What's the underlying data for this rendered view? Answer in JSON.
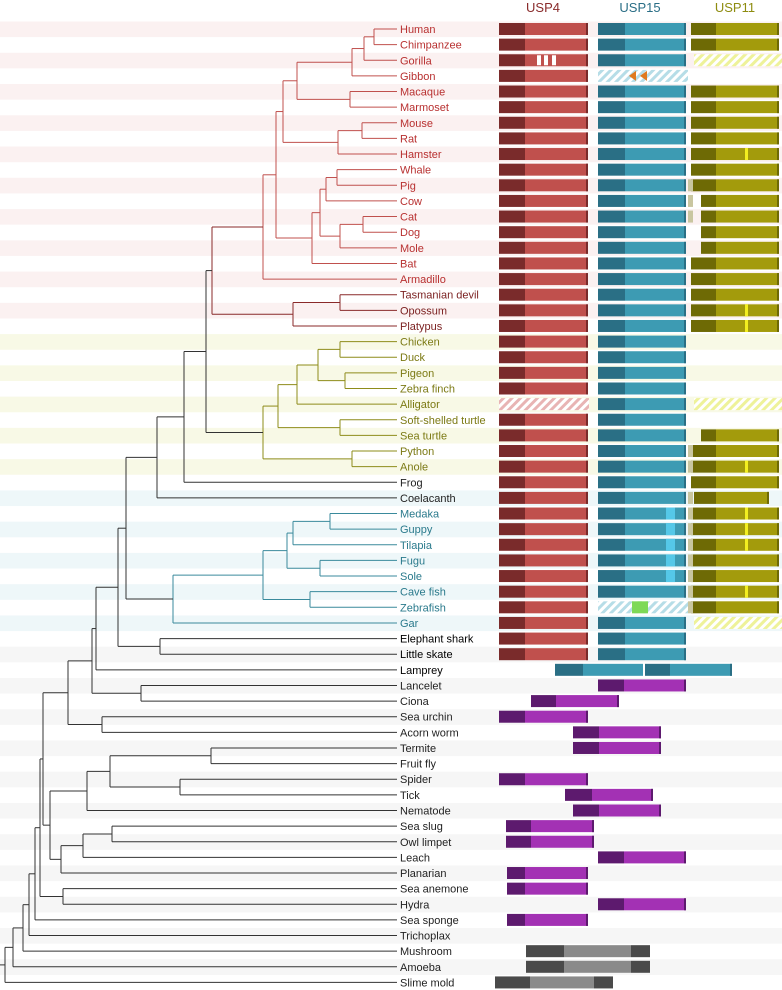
{
  "headers": [
    {
      "label": "USP4",
      "color": "#8a2c2c"
    },
    {
      "label": "USP15",
      "color": "#2a6e86"
    },
    {
      "label": "USP11",
      "color": "#8e8c10"
    }
  ],
  "clade_colors": {
    "mammal": "#b83030",
    "basal_mammal": "#7a1f1f",
    "sauropsid": "#7c7a14",
    "fish": "#2a7a8c",
    "other": "#222222"
  },
  "domain_colors": {
    "usp4": [
      "#7a2b2b",
      "#c0504d"
    ],
    "usp15": [
      "#2a6f85",
      "#3d9bb3"
    ],
    "usp11": [
      "#6e6a05",
      "#a39b0c"
    ],
    "purple": [
      "#5d1a6e",
      "#a331b4"
    ],
    "gray": [
      "#4a4a4a",
      "#8a8a8a"
    ]
  },
  "species": [
    {
      "name": "Human",
      "clade": "mammal"
    },
    {
      "name": "Chimpanzee",
      "clade": "mammal"
    },
    {
      "name": "Gorilla",
      "clade": "mammal"
    },
    {
      "name": "Gibbon",
      "clade": "mammal"
    },
    {
      "name": "Macaque",
      "clade": "mammal"
    },
    {
      "name": "Marmoset",
      "clade": "mammal"
    },
    {
      "name": "Mouse",
      "clade": "mammal"
    },
    {
      "name": "Rat",
      "clade": "mammal"
    },
    {
      "name": "Hamster",
      "clade": "mammal"
    },
    {
      "name": "Whale",
      "clade": "mammal"
    },
    {
      "name": "Pig",
      "clade": "mammal"
    },
    {
      "name": "Cow",
      "clade": "mammal"
    },
    {
      "name": "Cat",
      "clade": "mammal"
    },
    {
      "name": "Dog",
      "clade": "mammal"
    },
    {
      "name": "Mole",
      "clade": "mammal"
    },
    {
      "name": "Bat",
      "clade": "mammal"
    },
    {
      "name": "Armadillo",
      "clade": "mammal"
    },
    {
      "name": "Tasmanian devil",
      "clade": "basal_mammal"
    },
    {
      "name": "Opossum",
      "clade": "basal_mammal"
    },
    {
      "name": "Platypus",
      "clade": "basal_mammal"
    },
    {
      "name": "Chicken",
      "clade": "sauropsid"
    },
    {
      "name": "Duck",
      "clade": "sauropsid"
    },
    {
      "name": "Pigeon",
      "clade": "sauropsid"
    },
    {
      "name": "Zebra finch",
      "clade": "sauropsid"
    },
    {
      "name": "Alligator",
      "clade": "sauropsid"
    },
    {
      "name": "Soft-shelled turtle",
      "clade": "sauropsid"
    },
    {
      "name": "Sea turtle",
      "clade": "sauropsid"
    },
    {
      "name": "Python",
      "clade": "sauropsid"
    },
    {
      "name": "Anole",
      "clade": "sauropsid"
    },
    {
      "name": "Frog",
      "clade": "other"
    },
    {
      "name": "Coelacanth",
      "clade": "other"
    },
    {
      "name": "Medaka",
      "clade": "fish"
    },
    {
      "name": "Guppy",
      "clade": "fish"
    },
    {
      "name": "Tilapia",
      "clade": "fish"
    },
    {
      "name": "Fugu",
      "clade": "fish"
    },
    {
      "name": "Sole",
      "clade": "fish"
    },
    {
      "name": "Cave fish",
      "clade": "fish"
    },
    {
      "name": "Zebrafish",
      "clade": "fish"
    },
    {
      "name": "Gar",
      "clade": "fish"
    },
    {
      "name": "Elephant shark",
      "clade": "other"
    },
    {
      "name": "Little skate",
      "clade": "other"
    },
    {
      "name": "Lamprey",
      "clade": "other"
    },
    {
      "name": "Lancelet",
      "clade": "other"
    },
    {
      "name": "Ciona",
      "clade": "other"
    },
    {
      "name": "Sea urchin",
      "clade": "other"
    },
    {
      "name": "Acorn worm",
      "clade": "other"
    },
    {
      "name": "Termite",
      "clade": "other"
    },
    {
      "name": "Fruit fly",
      "clade": "other"
    },
    {
      "name": "Spider",
      "clade": "other"
    },
    {
      "name": "Tick",
      "clade": "other"
    },
    {
      "name": "Nematode",
      "clade": "other"
    },
    {
      "name": "Sea slug",
      "clade": "other"
    },
    {
      "name": "Owl limpet",
      "clade": "other"
    },
    {
      "name": "Leach",
      "clade": "other"
    },
    {
      "name": "Planarian",
      "clade": "other"
    },
    {
      "name": "Sea anemone",
      "clade": "other"
    },
    {
      "name": "Hydra",
      "clade": "other"
    },
    {
      "name": "Sea sponge",
      "clade": "other"
    },
    {
      "name": "Trichoplax",
      "clade": "other"
    },
    {
      "name": "Mushroom",
      "clade": "other"
    },
    {
      "name": "Amoeba",
      "clade": "other"
    },
    {
      "name": "Slime mold",
      "clade": "other"
    }
  ]
}
